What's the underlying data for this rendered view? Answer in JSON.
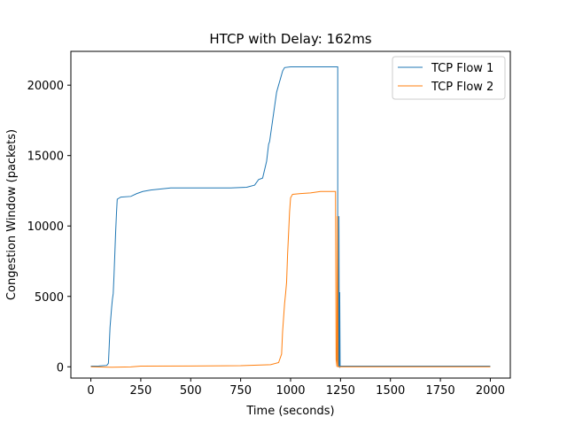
{
  "chart_data": {
    "type": "line",
    "title": "HTCP with Delay: 162ms",
    "xlabel": "Time (seconds)",
    "ylabel": "Congestion Window (packets)",
    "xlim": [
      -100,
      2100
    ],
    "ylim": [
      -800,
      22400
    ],
    "xticks": [
      0,
      250,
      500,
      750,
      1000,
      1250,
      1500,
      1750,
      2000
    ],
    "yticks": [
      0,
      5000,
      10000,
      15000,
      20000
    ],
    "grid": false,
    "legend_position": "top-right",
    "series": [
      {
        "name": "TCP Flow 1",
        "color": "#1f77b4",
        "points": [
          [
            0,
            50
          ],
          [
            40,
            60
          ],
          [
            80,
            100
          ],
          [
            88,
            250
          ],
          [
            92,
            1500
          ],
          [
            96,
            2800
          ],
          [
            100,
            3500
          ],
          [
            104,
            4200
          ],
          [
            108,
            4800
          ],
          [
            112,
            5200
          ],
          [
            116,
            6500
          ],
          [
            120,
            8000
          ],
          [
            124,
            9500
          ],
          [
            128,
            10800
          ],
          [
            132,
            11900
          ],
          [
            150,
            12050
          ],
          [
            200,
            12100
          ],
          [
            230,
            12300
          ],
          [
            260,
            12450
          ],
          [
            300,
            12550
          ],
          [
            400,
            12700
          ],
          [
            500,
            12700
          ],
          [
            600,
            12700
          ],
          [
            700,
            12700
          ],
          [
            780,
            12750
          ],
          [
            820,
            12900
          ],
          [
            840,
            13300
          ],
          [
            860,
            13400
          ],
          [
            870,
            14000
          ],
          [
            880,
            14600
          ],
          [
            885,
            15200
          ],
          [
            890,
            15800
          ],
          [
            895,
            16000
          ],
          [
            900,
            16500
          ],
          [
            905,
            17000
          ],
          [
            910,
            17500
          ],
          [
            915,
            18000
          ],
          [
            920,
            18500
          ],
          [
            930,
            19500
          ],
          [
            940,
            20000
          ],
          [
            950,
            20500
          ],
          [
            960,
            21000
          ],
          [
            970,
            21250
          ],
          [
            1000,
            21300
          ],
          [
            1100,
            21300
          ],
          [
            1200,
            21300
          ],
          [
            1236,
            21300
          ],
          [
            1236,
            500
          ],
          [
            1240,
            0
          ],
          [
            1242,
            10700
          ],
          [
            1244,
            0
          ],
          [
            1246,
            5300
          ],
          [
            1248,
            0
          ],
          [
            1250,
            50
          ],
          [
            1500,
            50
          ],
          [
            1750,
            50
          ],
          [
            2000,
            50
          ]
        ]
      },
      {
        "name": "TCP Flow 2",
        "color": "#ff7f0e",
        "points": [
          [
            0,
            0
          ],
          [
            100,
            -30
          ],
          [
            200,
            -10
          ],
          [
            250,
            50
          ],
          [
            500,
            60
          ],
          [
            750,
            80
          ],
          [
            900,
            150
          ],
          [
            940,
            300
          ],
          [
            955,
            900
          ],
          [
            960,
            2500
          ],
          [
            965,
            3500
          ],
          [
            970,
            4500
          ],
          [
            975,
            5200
          ],
          [
            980,
            6000
          ],
          [
            985,
            8000
          ],
          [
            990,
            9500
          ],
          [
            995,
            11000
          ],
          [
            1000,
            12000
          ],
          [
            1010,
            12250
          ],
          [
            1050,
            12300
          ],
          [
            1100,
            12350
          ],
          [
            1150,
            12450
          ],
          [
            1220,
            12450
          ],
          [
            1225,
            12450
          ],
          [
            1228,
            500
          ],
          [
            1232,
            0
          ],
          [
            1234,
            10700
          ],
          [
            1238,
            0
          ],
          [
            1250,
            0
          ],
          [
            1500,
            0
          ],
          [
            1750,
            0
          ],
          [
            2000,
            0
          ]
        ]
      }
    ]
  }
}
